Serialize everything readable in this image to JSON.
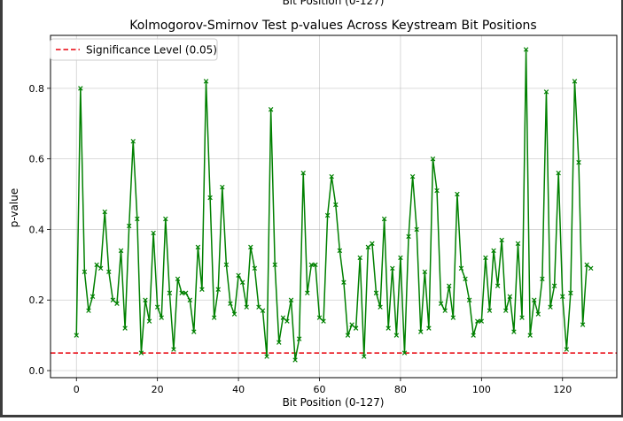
{
  "chart_data": {
    "type": "line",
    "title": "Kolmogorov-Smirnov Test p-values Across Keystream Bit Positions",
    "clipped_top_text": "Bit Position (0-127)",
    "xlabel": "Bit Position (0-127)",
    "ylabel": "p-value",
    "xlim": [
      -6.4,
      133.4
    ],
    "ylim": [
      -0.02,
      0.95
    ],
    "xticks": [
      0,
      20,
      40,
      60,
      80,
      100,
      120
    ],
    "yticks": [
      0.0,
      0.2,
      0.4,
      0.6,
      0.8
    ],
    "ytick_labels": [
      "0.0",
      "0.2",
      "0.4",
      "0.6",
      "0.8"
    ],
    "grid": true,
    "legend_position": "upper-left",
    "threshold": {
      "value": 0.05,
      "label": "Significance Level (0.05)",
      "color": "#e8000b",
      "style": "dashed"
    },
    "series": [
      {
        "color": "#008000",
        "marker": "x",
        "x": [
          0,
          1,
          2,
          3,
          4,
          5,
          6,
          7,
          8,
          9,
          10,
          11,
          12,
          13,
          14,
          15,
          16,
          17,
          18,
          19,
          20,
          21,
          22,
          23,
          24,
          25,
          26,
          27,
          28,
          29,
          30,
          31,
          32,
          33,
          34,
          35,
          36,
          37,
          38,
          39,
          40,
          41,
          42,
          43,
          44,
          45,
          46,
          47,
          48,
          49,
          50,
          51,
          52,
          53,
          54,
          55,
          56,
          57,
          58,
          59,
          60,
          61,
          62,
          63,
          64,
          65,
          66,
          67,
          68,
          69,
          70,
          71,
          72,
          73,
          74,
          75,
          76,
          77,
          78,
          79,
          80,
          81,
          82,
          83,
          84,
          85,
          86,
          87,
          88,
          89,
          90,
          91,
          92,
          93,
          94,
          95,
          96,
          97,
          98,
          99,
          100,
          101,
          102,
          103,
          104,
          105,
          106,
          107,
          108,
          109,
          110,
          111,
          112,
          113,
          114,
          115,
          116,
          117,
          118,
          119,
          120,
          121,
          122,
          123,
          124,
          125,
          126,
          127
        ],
        "values": [
          0.1,
          0.8,
          0.28,
          0.17,
          0.21,
          0.3,
          0.29,
          0.45,
          0.28,
          0.2,
          0.19,
          0.34,
          0.12,
          0.41,
          0.65,
          0.43,
          0.05,
          0.2,
          0.14,
          0.39,
          0.18,
          0.15,
          0.43,
          0.22,
          0.06,
          0.26,
          0.22,
          0.22,
          0.2,
          0.11,
          0.35,
          0.23,
          0.82,
          0.49,
          0.15,
          0.23,
          0.52,
          0.3,
          0.19,
          0.16,
          0.27,
          0.25,
          0.18,
          0.35,
          0.29,
          0.18,
          0.17,
          0.04,
          0.74,
          0.3,
          0.08,
          0.15,
          0.14,
          0.2,
          0.03,
          0.09,
          0.56,
          0.22,
          0.3,
          0.3,
          0.15,
          0.14,
          0.44,
          0.55,
          0.47,
          0.34,
          0.25,
          0.1,
          0.13,
          0.12,
          0.32,
          0.04,
          0.35,
          0.36,
          0.22,
          0.18,
          0.43,
          0.12,
          0.29,
          0.1,
          0.32,
          0.05,
          0.38,
          0.55,
          0.4,
          0.11,
          0.28,
          0.12,
          0.6,
          0.51,
          0.19,
          0.17,
          0.24,
          0.15,
          0.5,
          0.29,
          0.26,
          0.2,
          0.1,
          0.14,
          0.14,
          0.32,
          0.17,
          0.34,
          0.24,
          0.37,
          0.17,
          0.21,
          0.11,
          0.36,
          0.15,
          0.91,
          0.1,
          0.2,
          0.16,
          0.26,
          0.79,
          0.18,
          0.24,
          0.56,
          0.21,
          0.06,
          0.22,
          0.82,
          0.59,
          0.13,
          0.3,
          0.29
        ]
      }
    ]
  }
}
